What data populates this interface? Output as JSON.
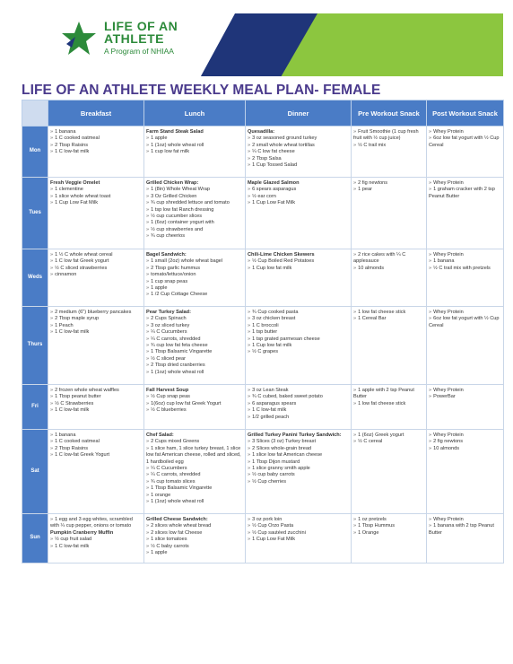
{
  "header": {
    "logo_line1": "LIFE OF AN",
    "logo_line2": "ATHLETE",
    "logo_tagline": "A Program of NHIAA",
    "colors": {
      "teal": "#1f9ad6",
      "navy": "#1f3579",
      "green": "#8cc63f",
      "logo_green": "#2c8a3a"
    }
  },
  "title": "LIFE OF AN ATHLETE WEEKLY MEAL PLAN- FEMALE",
  "columns": [
    "Breakfast",
    "Lunch",
    "Dinner",
    "Pre Workout Snack",
    "Post Workout Snack"
  ],
  "rows": [
    {
      "day": "Mon",
      "cells": [
        {
          "title": "",
          "items": [
            "1 banana",
            "1 C cooked oatmeal",
            "2 Tbsp Raisins",
            "1 C low-fat milk"
          ]
        },
        {
          "title": "Farm Stand Steak Salad",
          "items": [
            "1 apple",
            "1 (1oz) whole wheat roll",
            "1 cup low fat milk"
          ]
        },
        {
          "title": "Quesadilla:",
          "items": [
            "3 oz seasoned ground turkey",
            "2 small whole wheat tortillas",
            "¼ C low fat cheese",
            "2 Tbsp Salsa",
            "1 Cup Tossed Salad"
          ]
        },
        {
          "title": "",
          "items": [
            "Fruit Smoothie (1 cup fresh fruit with ½ cup juice)",
            "½ C trail mix"
          ]
        },
        {
          "title": "",
          "items": [
            "Whey Protein",
            "6oz low fat yogurt with ½ Cup Cereal"
          ]
        }
      ]
    },
    {
      "day": "Tues",
      "cells": [
        {
          "title": "Fresh Veggie Omelet",
          "items": [
            "1 clementine",
            "1 slice whole wheat toast",
            "1 Cup Low Fat Milk"
          ]
        },
        {
          "title": "Grilled Chicken Wrap:",
          "items": [
            "1 (8in) Whole Wheat Wrap",
            "3 Oz Grilled Chicken",
            "¾ cup shredded lettuce and tomato",
            "1 tsp low fat Ranch dressing",
            "½ cup cucumber slices",
            "1 (6oz) container yogurt with",
            "½ cup strawberries and",
            "¾ cup cheerios"
          ]
        },
        {
          "title": "Maple Glazed Salmon",
          "items": [
            "6 spears asparagus",
            "½ ear corn",
            "1 Cup Low Fat Milk"
          ]
        },
        {
          "title": "",
          "items": [
            "2 fig newtons",
            "1 pear"
          ]
        },
        {
          "title": "",
          "items": [
            "Whey Protein",
            "1 graham cracker with 2 tsp Peanut Butter"
          ]
        }
      ]
    },
    {
      "day": "Weds",
      "cells": [
        {
          "title": "",
          "items": [
            "1 ½ C whole wheat cereal",
            "1 C low fat Greek yogurt",
            "½ C sliced strawberries",
            "cinnamon"
          ]
        },
        {
          "title": "Bagel Sandwich:",
          "items": [
            "1 small (2oz) whole wheat bagel",
            "2 Tbsp garlic hummus",
            "tomato/lettuce/onion",
            "1 cup snap peas",
            "1 apple",
            "1 /2 Cup Cottage Cheese"
          ]
        },
        {
          "title": "Chili-Lime Chicken Skewers",
          "items": [
            "½ Cup Boiled Red Potatoes",
            "1 Cup low fat milk"
          ]
        },
        {
          "title": "",
          "items": [
            "2 rice cakes with ¼ C applesauce",
            "10 almonds"
          ]
        },
        {
          "title": "",
          "items": [
            "Whey Protein",
            "1 banana",
            "½ C trail mix with pretzels"
          ]
        }
      ]
    },
    {
      "day": "Thurs",
      "cells": [
        {
          "title": "",
          "items": [
            "2 medium (6\") blueberry pancakes",
            "2 Tbsp maple syrup",
            "1 Peach",
            "1 C low-fat milk"
          ]
        },
        {
          "title": "Pear Turkey Salad:",
          "items": [
            "2 Cups Spinach",
            "3 oz sliced turkey",
            "¼ C Cucumbers",
            "¼ C carrots, shredded",
            "¾ cup low fat feta cheese",
            "1 Tbsp Balsamic Vingarette",
            "½ C sliced pear",
            "2 Tbsp dried cranberries",
            "1 (1oz) whole wheat roll"
          ]
        },
        {
          "title": "",
          "items": [
            "¾ Cup cooked pasta",
            "3 oz chicken breast",
            "1 C broccoli",
            "1 tsp butter",
            "1 tsp grated parmesan cheese",
            "1 Cup low fat milk",
            "½ C grapes"
          ]
        },
        {
          "title": "",
          "items": [
            "1 low fat cheese stick",
            "1 Cereal Bar"
          ]
        },
        {
          "title": "",
          "items": [
            "Whey Protein",
            "6oz low fat yogurt with ½ Cup Cereal"
          ]
        }
      ]
    },
    {
      "day": "Fri",
      "cells": [
        {
          "title": "",
          "items": [
            "2 frozen whole wheat waffles",
            "1 Tbsp peanut butter",
            "½ C Strawberries",
            "1 C low-fat milk"
          ]
        },
        {
          "title": "Fall Harvest Soup",
          "items": [
            "½ Cup snap peas",
            "1(6oz) cup low fat Greek Yogurt",
            "½ C blueberries"
          ]
        },
        {
          "title": "",
          "items": [
            "3 oz Lean Steak",
            "¾ C cubed, baked sweet potato",
            "6 asparagus spears",
            "1 C low-fat milk",
            "1/2 grilled peach"
          ]
        },
        {
          "title": "",
          "items": [
            "1 apple with 2 tsp Peanut Butter",
            "1 low fat cheese stick"
          ]
        },
        {
          "title": "",
          "items": [
            "Whey Protein",
            "PowerBar"
          ]
        }
      ]
    },
    {
      "day": "Sat",
      "cells": [
        {
          "title": "",
          "items": [
            "1 banana",
            "1 C cooked oatmeal",
            "2 Tbsp Raisins",
            "1 C low-fat Greek Yogurt"
          ]
        },
        {
          "title": "Chef Salad:",
          "items": [
            "2 Cups mixed Greens",
            "1 slice ham, 1 slice turkey breast, 1 slice low fat American cheese, rolled and sliced, 1 hardboiled egg",
            "¼ C Cucumbers",
            "¼ C carrots, shredded",
            "¾ cup tomato slices",
            "1 Tbsp Balsamic Vingarette",
            "1 orange",
            "1 (1oz) whole wheat roll"
          ]
        },
        {
          "title": "Grilled Turkey Panini Turkey Sandwich:",
          "items": [
            "3 Slices (3 oz) Turkey breast",
            "2 Slices whole-grain bread",
            "1 slice low fat American cheese",
            "1 Tbsp Dijon mustard",
            "1 slice granny smith apple",
            "½ cup baby carrots",
            "½ Cup cherries"
          ]
        },
        {
          "title": "",
          "items": [
            "1 (6oz) Greek yogurt",
            "½ C cereal"
          ]
        },
        {
          "title": "",
          "items": [
            "Whey Protein",
            "2 fig newtons",
            "10 almonds"
          ]
        }
      ]
    },
    {
      "day": "Sun",
      "cells": [
        {
          "title": "",
          "items": [
            "1 egg and 3 egg whites, scrambled with ¼ cup pepper, onions or tomato"
          ],
          "subtitle": "Pumpkin Cranberry Muffin",
          "items2": [
            "½ cup fruit salad",
            "1 C low-fat milk"
          ]
        },
        {
          "title": "Grilled Cheese Sandwich:",
          "items": [
            "2 slices whole wheat bread",
            "2 slices low fat Cheese",
            "1 slice tomatoes",
            "½ C baby carrots",
            "1 apple"
          ]
        },
        {
          "title": "",
          "items": [
            "3 oz pork loin",
            "½ Cup Orzo Pasta",
            "½ Cup sautéed zucchini",
            "1 Cup Low Fat Milk"
          ]
        },
        {
          "title": "",
          "items": [
            "1 oz pretzels",
            "1 Tbsp Hummus",
            "1 Orange"
          ]
        },
        {
          "title": "",
          "items": [
            "Whey Protein",
            "1 banana with 2 tsp Peanut Butter"
          ]
        }
      ]
    }
  ]
}
